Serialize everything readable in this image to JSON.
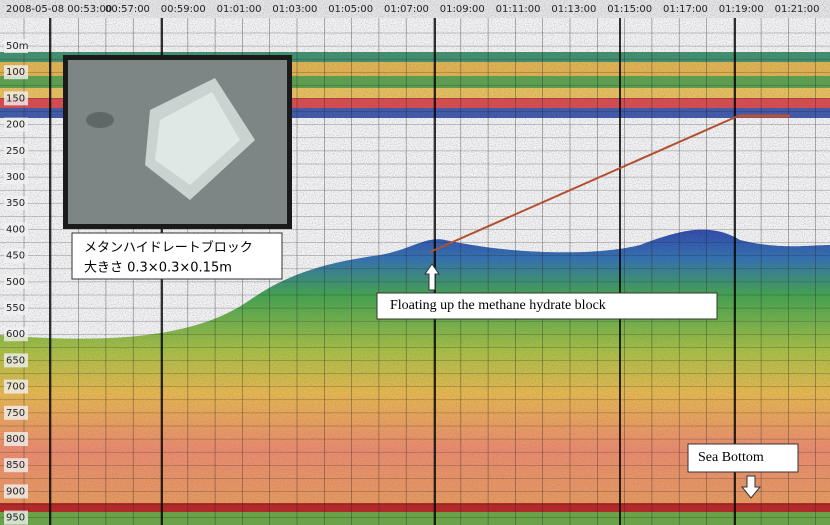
{
  "time_axis": {
    "labels": [
      "2008-05-08 00:53:00",
      "00:57:00",
      "00:59:00",
      "01:01:00",
      "01:03:00",
      "01:05:00",
      "01:07:00",
      "01:09:00",
      "01:11:00",
      "01:13:00",
      "01:15:00",
      "01:17:00",
      "01:19:00",
      "01:21:00"
    ]
  },
  "depth_axis": {
    "labels": [
      "50m",
      "100",
      "150",
      "200",
      "250",
      "300",
      "350",
      "400",
      "450",
      "500",
      "550",
      "600",
      "650",
      "700",
      "750",
      "800",
      "850",
      "900",
      "950"
    ]
  },
  "inset": {
    "caption": [
      "メタンハイドレートブロック",
      "大きさ  0.3×0.3×0.15m"
    ]
  },
  "annotations": {
    "floating": "Floating up the methane hydrate block",
    "bottom": "Sea Bottom"
  }
}
